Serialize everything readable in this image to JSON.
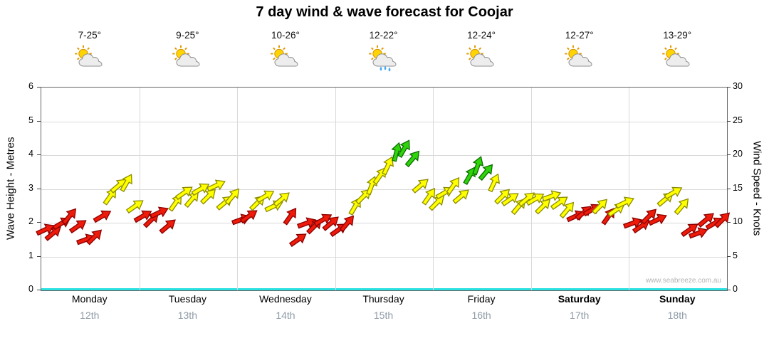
{
  "watermark": "www.seabreeze.com.au",
  "colors": {
    "red": "#EE1A0A",
    "yellow": "#FFFF00",
    "green": "#2FD40A",
    "red_stroke": "#8B0000",
    "yellow_stroke": "#8B8B00",
    "green_stroke": "#0B6B00",
    "baseline": "#29E1E1",
    "grid": "#d9d9d9",
    "date_text": "#8E9AA6"
  },
  "chart_data": {
    "type": "scatter",
    "title": "7 day wind & wave forecast for Coojar",
    "ylabel_left": "Wave Height - Metres",
    "ylabel_right": "Wind Speed - Knots",
    "ylim_left": [
      0,
      6
    ],
    "ylim_right": [
      0,
      30
    ],
    "yticks_left": [
      0,
      1,
      2,
      3,
      4,
      5,
      6
    ],
    "yticks_right": [
      0,
      5,
      10,
      15,
      20,
      25,
      30
    ],
    "grid": true,
    "legend": "none",
    "days": [
      {
        "name": "Monday",
        "date": "12th",
        "temp": "7-25°",
        "icon": "sun-cloud",
        "weekend": false,
        "speeds_knots": [
          9,
          8.5,
          10,
          11,
          9.5,
          7.5,
          8,
          11,
          14,
          15.5,
          16,
          12.5
        ],
        "colors": [
          "red",
          "red",
          "red",
          "red",
          "red",
          "red",
          "red",
          "red",
          "yellow",
          "yellow",
          "yellow",
          "yellow"
        ],
        "directions_deg": [
          -25,
          -40,
          -30,
          -50,
          -35,
          -20,
          -45,
          -30,
          -55,
          -40,
          -60,
          -35
        ]
      },
      {
        "name": "Tuesday",
        "date": "13th",
        "temp": "9-25°",
        "icon": "sun-cloud",
        "weekend": false,
        "speeds_knots": [
          11,
          10.5,
          11.5,
          9.5,
          13,
          14.5,
          13.5,
          15,
          14,
          15.5,
          13,
          14
        ],
        "colors": [
          "red",
          "red",
          "red",
          "red",
          "yellow",
          "yellow",
          "yellow",
          "yellow",
          "yellow",
          "yellow",
          "yellow",
          "yellow"
        ],
        "directions_deg": [
          -30,
          -45,
          -25,
          -40,
          -55,
          -35,
          -50,
          -30,
          -45,
          -25,
          -40,
          -50
        ]
      },
      {
        "name": "Wednesday",
        "date": "14th",
        "temp": "10-26°",
        "icon": "sun-cloud",
        "weekend": false,
        "speeds_knots": [
          10.5,
          11,
          13,
          14,
          12.5,
          13.5,
          11,
          7.5,
          10,
          9.5,
          10.5,
          10
        ],
        "colors": [
          "red",
          "red",
          "yellow",
          "yellow",
          "yellow",
          "yellow",
          "red",
          "red",
          "red",
          "red",
          "red",
          "red"
        ],
        "directions_deg": [
          -20,
          -35,
          -45,
          -30,
          -25,
          -40,
          -55,
          -35,
          -20,
          -45,
          -30,
          -40
        ]
      },
      {
        "name": "Thursday",
        "date": "15th",
        "temp": "12-22°",
        "icon": "sun-cloud-rain",
        "weekend": false,
        "speeds_knots": [
          9,
          10,
          12.5,
          14,
          15.5,
          17,
          18.5,
          20.5,
          21,
          19.5,
          15.5,
          14
        ],
        "colors": [
          "red",
          "red",
          "yellow",
          "yellow",
          "yellow",
          "yellow",
          "yellow",
          "green",
          "green",
          "green",
          "yellow",
          "yellow"
        ],
        "directions_deg": [
          -35,
          -50,
          -60,
          -45,
          -70,
          -55,
          -65,
          -75,
          -60,
          -50,
          -40,
          -55
        ]
      },
      {
        "name": "Friday",
        "date": "16th",
        "temp": "12-24°",
        "icon": "sun-cloud",
        "weekend": false,
        "speeds_knots": [
          13,
          14.5,
          15.5,
          14,
          17,
          18.5,
          17.5,
          16,
          14,
          13.5,
          12.5,
          13.5
        ],
        "colors": [
          "yellow",
          "yellow",
          "yellow",
          "yellow",
          "green",
          "green",
          "green",
          "yellow",
          "yellow",
          "yellow",
          "yellow",
          "yellow"
        ],
        "directions_deg": [
          -45,
          -30,
          -55,
          -40,
          -60,
          -70,
          -50,
          -65,
          -45,
          -35,
          -50,
          -40
        ]
      },
      {
        "name": "Saturday",
        "date": "17th",
        "temp": "12-27°",
        "icon": "sun-cloud",
        "weekend": true,
        "speeds_knots": [
          13.5,
          12.5,
          14,
          13,
          12,
          11,
          11.5,
          12,
          12.5,
          11,
          12,
          13
        ],
        "colors": [
          "yellow",
          "yellow",
          "yellow",
          "yellow",
          "yellow",
          "red",
          "red",
          "red",
          "yellow",
          "red",
          "yellow",
          "yellow"
        ],
        "directions_deg": [
          -30,
          -45,
          -20,
          -35,
          -50,
          -25,
          -40,
          -30,
          -45,
          -55,
          -35,
          -25
        ]
      },
      {
        "name": "Sunday",
        "date": "18th",
        "temp": "13-29°",
        "icon": "sun-cloud",
        "weekend": true,
        "speeds_knots": [
          10,
          9.5,
          11,
          10.5,
          13.5,
          14.5,
          12.5,
          9,
          8.5,
          10.5,
          10,
          10.5
        ],
        "colors": [
          "red",
          "red",
          "red",
          "red",
          "yellow",
          "yellow",
          "yellow",
          "red",
          "red",
          "red",
          "red",
          "red"
        ],
        "directions_deg": [
          -20,
          -35,
          -45,
          -25,
          -40,
          -30,
          -50,
          -35,
          -20,
          -40,
          -30,
          -45
        ]
      }
    ]
  }
}
